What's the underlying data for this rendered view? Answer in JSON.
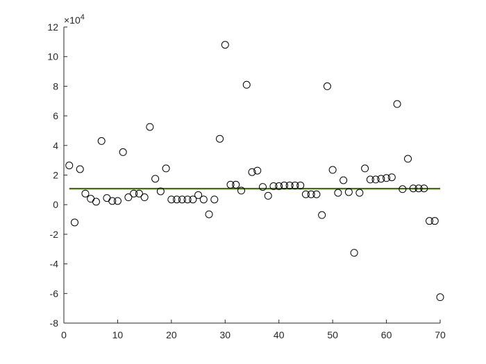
{
  "chart_data": {
    "type": "scatter",
    "title": "",
    "xlabel": "",
    "ylabel": "",
    "y_exponent_label": "×10",
    "y_exponent_power": "4",
    "xlim": [
      0,
      70
    ],
    "ylim": [
      -8,
      12
    ],
    "x_ticks": [
      0,
      10,
      20,
      30,
      40,
      50,
      60,
      70
    ],
    "y_ticks": [
      -8,
      -6,
      -4,
      -2,
      0,
      2,
      4,
      6,
      8,
      10,
      12
    ],
    "grid": false,
    "legend": "none",
    "axis_color": "#262626",
    "marker_color": "#000000",
    "series": [
      {
        "marker": "open-circle",
        "x": [
          1,
          2,
          3,
          4,
          5,
          6,
          7,
          8,
          9,
          10,
          11,
          12,
          13,
          14,
          15,
          16,
          17,
          18,
          19,
          20,
          21,
          22,
          23,
          24,
          25,
          26,
          27,
          28,
          29,
          30,
          31,
          32,
          33,
          34,
          35,
          36,
          37,
          38,
          39,
          40,
          41,
          42,
          43,
          44,
          45,
          46,
          47,
          48,
          49,
          50,
          51,
          52,
          53,
          54,
          55,
          56,
          57,
          58,
          59,
          60,
          61,
          62,
          63,
          64,
          65,
          66,
          67,
          68,
          69,
          70
        ],
        "y": [
          2.65,
          -1.2,
          2.4,
          0.75,
          0.4,
          0.2,
          4.3,
          0.45,
          0.25,
          0.25,
          3.55,
          0.5,
          0.75,
          0.75,
          0.5,
          5.25,
          1.75,
          0.9,
          2.45,
          0.35,
          0.35,
          0.35,
          0.35,
          0.35,
          0.65,
          0.35,
          -0.65,
          0.35,
          4.45,
          10.8,
          1.35,
          1.35,
          0.95,
          8.1,
          2.2,
          2.3,
          1.2,
          0.6,
          1.25,
          1.25,
          1.3,
          1.3,
          1.3,
          1.3,
          0.7,
          0.7,
          0.7,
          -0.7,
          8.0,
          2.35,
          0.8,
          1.65,
          0.85,
          -3.25,
          0.8,
          2.45,
          1.7,
          1.7,
          1.75,
          1.8,
          1.85,
          6.8,
          1.05,
          3.1,
          1.1,
          1.1,
          1.1,
          -1.1,
          -1.1,
          -6.25
        ]
      }
    ],
    "reference_lines": [
      {
        "color": "#77ac30",
        "y": 1.05,
        "x_range": [
          1,
          70
        ]
      },
      {
        "color": "#3f4f2a",
        "y": 1.1,
        "x_range": [
          1,
          70
        ]
      }
    ]
  }
}
